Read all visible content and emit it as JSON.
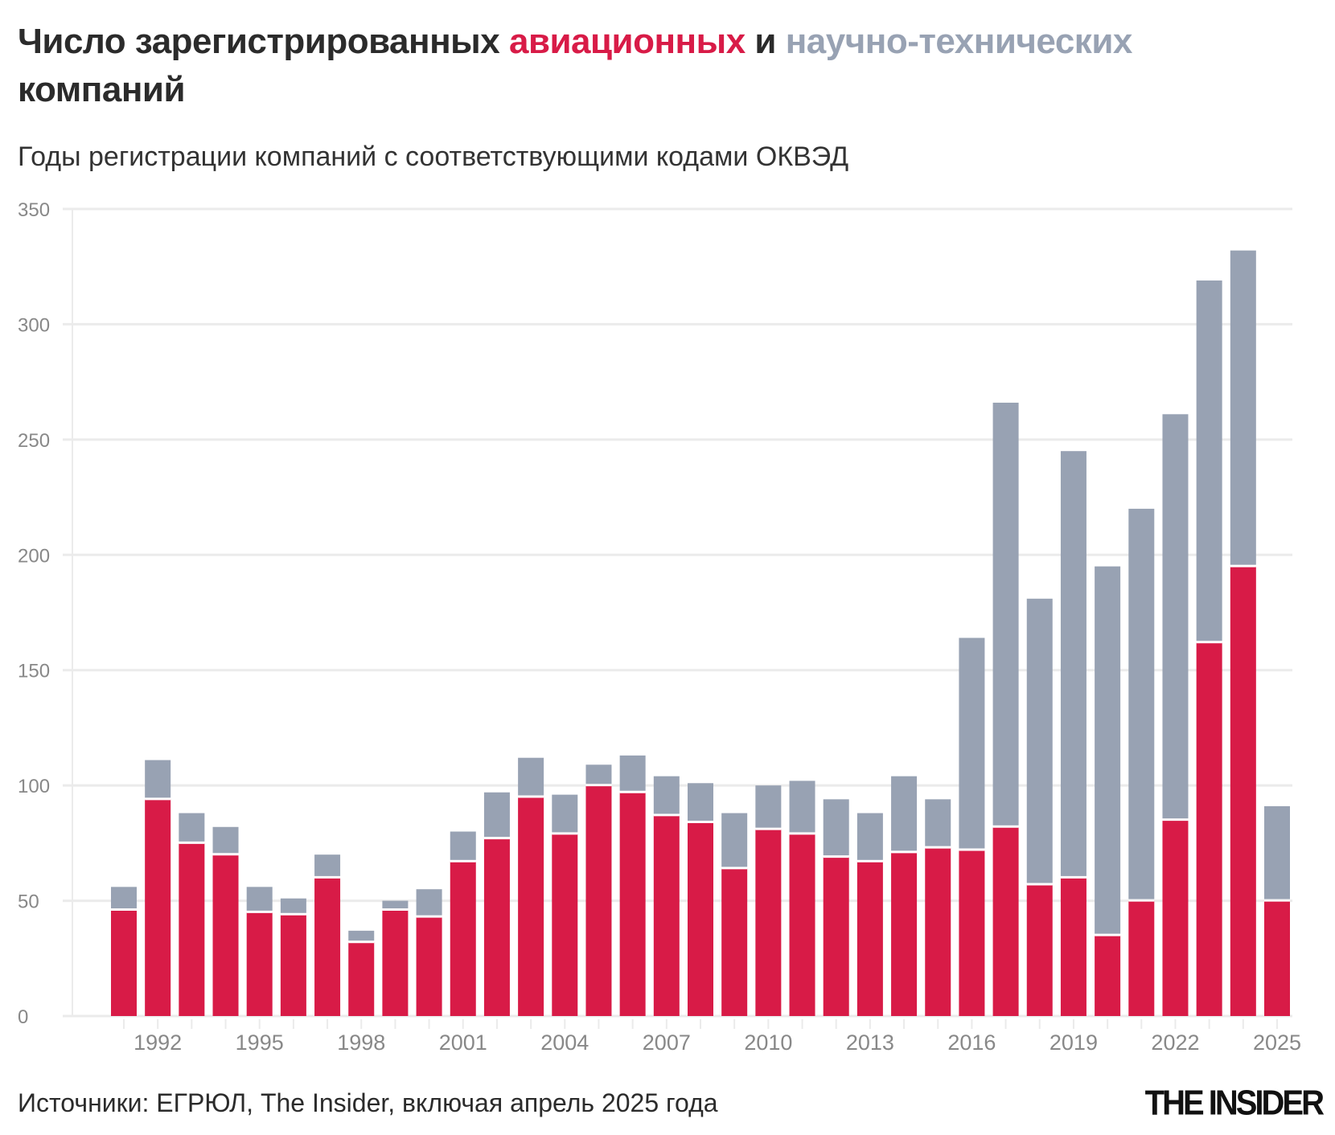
{
  "title": {
    "part1": "Число зарегистрированных ",
    "part2": "авиационных",
    "part3": " и ",
    "part4": "научно-технических",
    "part5": " компаний"
  },
  "subtitle": "Годы регистрации компаний с соответствующими кодами ОКВЭД",
  "source": "Источники: ЕГРЮЛ, The Insider, включая апрель 2025 года",
  "logo": "THE INSIDER",
  "colors": {
    "aviation": "#d81b47",
    "scitech": "#98a2b3",
    "grid": "#ebebeb",
    "tick": "#888888"
  },
  "chart_data": {
    "type": "bar",
    "stacked": true,
    "categories": [
      1991,
      1992,
      1993,
      1994,
      1995,
      1996,
      1997,
      1998,
      1999,
      2000,
      2001,
      2002,
      2003,
      2004,
      2005,
      2006,
      2007,
      2008,
      2009,
      2010,
      2011,
      2012,
      2013,
      2014,
      2015,
      2016,
      2017,
      2018,
      2019,
      2020,
      2021,
      2022,
      2023,
      2024,
      2025
    ],
    "x_tick_labels": [
      "1992",
      "1995",
      "1998",
      "2001",
      "2004",
      "2007",
      "2010",
      "2013",
      "2016",
      "2019",
      "2022",
      "2025"
    ],
    "series": [
      {
        "name": "авиационных",
        "color": "#d81b47",
        "values": [
          46,
          94,
          75,
          70,
          45,
          44,
          60,
          32,
          46,
          43,
          67,
          77,
          95,
          79,
          100,
          97,
          87,
          84,
          64,
          81,
          79,
          69,
          67,
          71,
          73,
          72,
          82,
          57,
          60,
          35,
          50,
          85,
          162,
          195,
          50
        ]
      },
      {
        "name": "научно-технических",
        "color": "#98a2b3",
        "values": [
          10,
          17,
          13,
          12,
          11,
          7,
          10,
          5,
          4,
          12,
          13,
          20,
          17,
          17,
          9,
          16,
          17,
          17,
          24,
          19,
          23,
          25,
          21,
          33,
          21,
          92,
          184,
          124,
          185,
          160,
          170,
          176,
          157,
          137,
          41
        ]
      }
    ],
    "ylim": [
      0,
      350
    ],
    "y_ticks": [
      "0",
      "50",
      "100",
      "150",
      "200",
      "250",
      "300",
      "350"
    ],
    "grid": true,
    "legend": "in title"
  }
}
